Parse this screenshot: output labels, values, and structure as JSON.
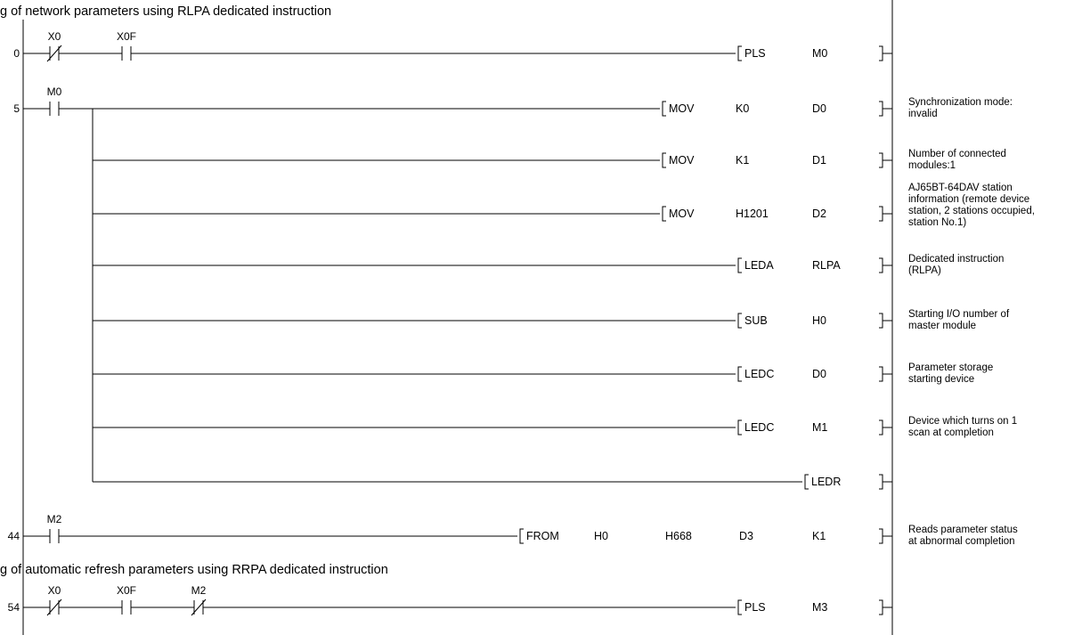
{
  "sections": {
    "network": "g of network parameters using RLPA dedicated instruction",
    "refresh": "g of automatic refresh parameters using RRPA dedicated instruction"
  },
  "rungs": {
    "r0": {
      "step": "0",
      "contacts": [
        "X0",
        "X0F"
      ],
      "op": "PLS",
      "arg1": "M0"
    },
    "r5": {
      "step": "5",
      "contact": "M0",
      "rows": {
        "mov_k0": {
          "op": "MOV",
          "a1": "K0",
          "a2": "D0",
          "comment": [
            "Synchronization mode:",
            "invalid"
          ]
        },
        "mov_k1": {
          "op": "MOV",
          "a1": "K1",
          "a2": "D1",
          "comment": [
            "Number of connected",
            "modules:1"
          ]
        },
        "mov_h1201": {
          "op": "MOV",
          "a1": "H1201",
          "a2": "D2",
          "comment": [
            "AJ65BT-64DAV station",
            "information (remote device",
            "station, 2 stations occupied,",
            "station No.1)"
          ]
        },
        "leda": {
          "op": "LEDA",
          "a1": "RLPA",
          "comment": [
            "Dedicated instruction",
            "(RLPA)"
          ]
        },
        "sub": {
          "op": "SUB",
          "a1": "H0",
          "comment": [
            "Starting I/O number of",
            "master module"
          ]
        },
        "ledc_d0": {
          "op": "LEDC",
          "a1": "D0",
          "comment": [
            "Parameter storage",
            "starting device"
          ]
        },
        "ledc_m1": {
          "op": "LEDC",
          "a1": "M1",
          "comment": [
            "Device which turns on 1",
            "scan at completion"
          ]
        },
        "ledr": {
          "op": "LEDR"
        }
      }
    },
    "r44": {
      "step": "44",
      "contact": "M2",
      "op": "FROM",
      "a1": "H0",
      "a2": "H668",
      "a3": "D3",
      "a4": "K1",
      "comment": [
        "Reads parameter status",
        "at abnormal completion"
      ]
    },
    "r54": {
      "step": "54",
      "contacts": [
        "X0",
        "X0F",
        "M2"
      ],
      "op": "PLS",
      "arg1": "M3"
    }
  }
}
